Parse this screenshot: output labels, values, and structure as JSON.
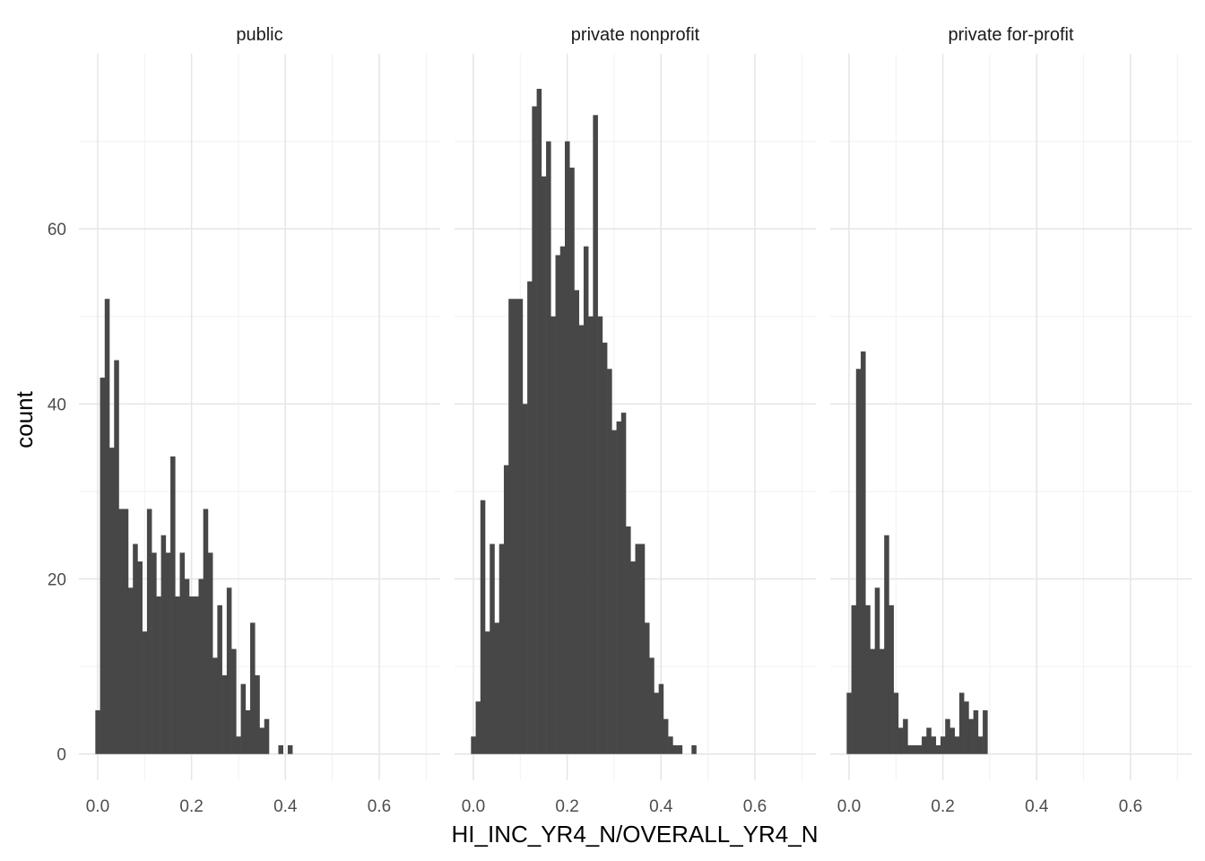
{
  "chart_data": {
    "type": "bar",
    "subtype": "faceted-histogram",
    "title": "",
    "xlabel": "HI_INC_YR4_N/OVERALL_YR4_N",
    "ylabel": "count",
    "xlim": [
      -0.04,
      0.73
    ],
    "ylim": [
      -3,
      80
    ],
    "x_ticks": [
      "0.0",
      "0.2",
      "0.4",
      "0.6"
    ],
    "x_tick_values": [
      0,
      0.2,
      0.4,
      0.6
    ],
    "y_ticks": [
      "0",
      "20",
      "40",
      "60"
    ],
    "y_tick_values": [
      0,
      20,
      40,
      60
    ],
    "grid": true,
    "bar_color": "#474747",
    "bin_start": 0,
    "bin_width": 0.01,
    "panels": [
      {
        "name": "public",
        "counts": [
          5,
          43,
          52,
          35,
          45,
          28,
          28,
          19,
          24,
          22,
          14,
          28,
          23,
          18,
          25,
          23,
          34,
          18,
          23,
          20,
          18,
          18,
          20,
          28,
          23,
          11,
          17,
          9,
          19,
          12,
          2,
          8,
          5,
          15,
          9,
          3,
          4,
          0,
          0,
          1,
          0,
          1
        ]
      },
      {
        "name": "private nonprofit",
        "counts": [
          2,
          6,
          29,
          14,
          24,
          15,
          24,
          33,
          52,
          52,
          52,
          40,
          54,
          74,
          76,
          66,
          70,
          50,
          57,
          58,
          70,
          67,
          53,
          49,
          58,
          50,
          73,
          50,
          47,
          44,
          37,
          38,
          39,
          26,
          22,
          24,
          24,
          15,
          11,
          7,
          8,
          4,
          2,
          1,
          1,
          0,
          0,
          1
        ]
      },
      {
        "name": "private for-profit",
        "counts": [
          7,
          17,
          44,
          46,
          17,
          12,
          19,
          12,
          25,
          17,
          7,
          3,
          4,
          1,
          1,
          1,
          2,
          3,
          2,
          1,
          2,
          4,
          3,
          2,
          7,
          6,
          4,
          5,
          2,
          5
        ]
      }
    ]
  }
}
